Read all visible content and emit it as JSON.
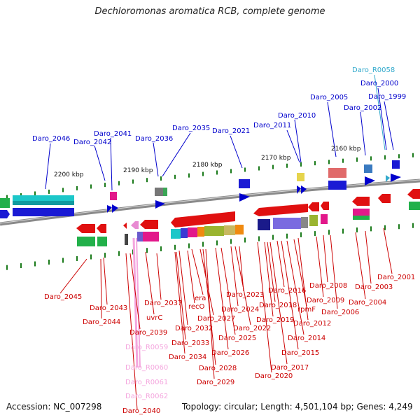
{
  "title": "Dechloromonas aromatica RCB, complete genome",
  "accession": "Accession: NC_007298",
  "summary": "Topology: circular; Length: 4,501,104 bp; Genes: 4,249",
  "colors": {
    "forward": "#0000cc",
    "reverse": "#cc0000",
    "rna": "#e88ad2",
    "trna": "#33aacc",
    "backbone": "#8a8a8a",
    "tick": "#1a7a1a"
  },
  "scale_labels": [
    "2200 kbp",
    "2190 kbp",
    "2180 kbp",
    "2170 kbp",
    "2160 kbp"
  ],
  "top_labels": [
    "Daro_2046",
    "Daro_2042",
    "Daro_2041",
    "Daro_2036",
    "Daro_2035",
    "Daro_2021",
    "Daro_2011",
    "Daro_2010",
    "Daro_2005",
    "Daro_2002",
    "Daro_1999",
    "Daro_2000",
    "Daro_R0058"
  ],
  "bottom_labels": [
    "Daro_2045",
    "Daro_2043",
    "Daro_2044",
    "Daro_2037",
    "uvrC",
    "Daro_2039",
    "Daro_R0059",
    "Daro_R0060",
    "Daro_R0061",
    "Daro_R0062",
    "Daro_2040",
    "era",
    "recO",
    "Daro_2032",
    "Daro_2033",
    "Daro_2034",
    "Daro_2027",
    "Daro_2028",
    "Daro_2029",
    "Daro_2026",
    "Daro_2025",
    "Daro_2024",
    "Daro_2023",
    "Daro_2022",
    "Daro_2018",
    "Daro_2019",
    "Daro_2016",
    "Daro_2017",
    "Daro_2020",
    "rpmF",
    "Daro_2012",
    "Daro_2014",
    "Daro_2015",
    "Daro_2008",
    "Daro_2009",
    "Daro_2006",
    "Daro_2003",
    "Daro_2004",
    "Daro_2001"
  ]
}
